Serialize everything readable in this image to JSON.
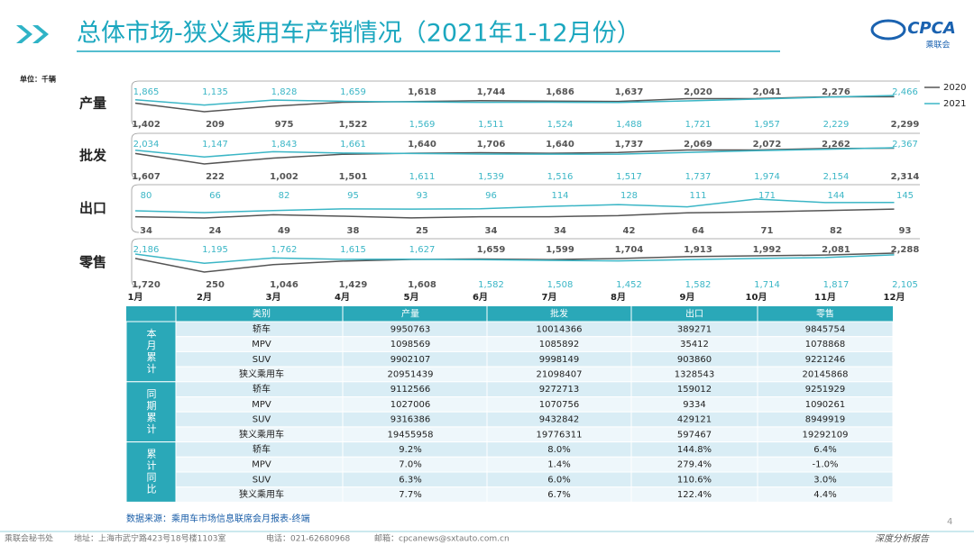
{
  "header": {
    "title": "总体市场-狭义乘用车产销情况（2021年1-12月份）",
    "logo": "CPCA",
    "logo_sub": "乘联会"
  },
  "chart_data": {
    "type": "line",
    "unit": "单位：千辆",
    "categories": [
      "1月",
      "2月",
      "3月",
      "4月",
      "5月",
      "6月",
      "7月",
      "8月",
      "9月",
      "10月",
      "11月",
      "12月"
    ],
    "series": [
      {
        "name": "2020",
        "color": "#555555"
      },
      {
        "name": "2021",
        "color": "#3bb6c6"
      }
    ],
    "panels": [
      {
        "label": "产量",
        "series": [
          {
            "values": [
              1402,
              209,
              975,
              1522,
              1618,
              1744,
              1686,
              1637,
              2020,
              2041,
              2276,
              2299
            ],
            "value_labels": [
              "1,402",
              "209",
              "975",
              "1,522",
              "1,618",
              "1,744",
              "1,686",
              "1,637",
              "2,020",
              "2,041",
              "2,276",
              "2,299"
            ]
          },
          {
            "values": [
              1865,
              1135,
              1828,
              1659,
              1569,
              1511,
              1524,
              1488,
              1721,
              1957,
              2229,
              2466
            ],
            "value_labels": [
              "1,865",
              "1,135",
              "1,828",
              "1,659",
              "1,569",
              "1,511",
              "1,524",
              "1,488",
              "1,721",
              "1,957",
              "2,229",
              "2,466"
            ]
          }
        ]
      },
      {
        "label": "批发",
        "series": [
          {
            "values": [
              1607,
              222,
              1002,
              1501,
              1640,
              1706,
              1640,
              1737,
              2069,
              2072,
              2262,
              2314
            ],
            "value_labels": [
              "1,607",
              "222",
              "1,002",
              "1,501",
              "1,640",
              "1,706",
              "1,640",
              "1,737",
              "2,069",
              "2,072",
              "2,262",
              "2,314"
            ]
          },
          {
            "values": [
              2034,
              1147,
              1843,
              1661,
              1611,
              1539,
              1516,
              1517,
              1737,
              1974,
              2154,
              2367
            ],
            "value_labels": [
              "2,034",
              "1,147",
              "1,843",
              "1,661",
              "1,611",
              "1,539",
              "1,516",
              "1,517",
              "1,737",
              "1,974",
              "2,154",
              "2,367"
            ]
          }
        ]
      },
      {
        "label": "出口",
        "series": [
          {
            "values": [
              34,
              24,
              49,
              38,
              25,
              34,
              34,
              42,
              64,
              71,
              82,
              93
            ],
            "value_labels": [
              "34",
              "24",
              "49",
              "38",
              "25",
              "34",
              "34",
              "42",
              "64",
              "71",
              "82",
              "93"
            ]
          },
          {
            "values": [
              80,
              66,
              82,
              95,
              93,
              96,
              114,
              128,
              111,
              171,
              144,
              145
            ],
            "value_labels": [
              "80",
              "66",
              "82",
              "95",
              "93",
              "96",
              "114",
              "128",
              "111",
              "171",
              "144",
              "145"
            ]
          }
        ]
      },
      {
        "label": "零售",
        "series": [
          {
            "values": [
              1720,
              250,
              1046,
              1429,
              1608,
              1659,
              1599,
              1704,
              1913,
              1992,
              2081,
              2288
            ],
            "value_labels": [
              "1,720",
              "250",
              "1,046",
              "1,429",
              "1,608",
              "1,659",
              "1,599",
              "1,704",
              "1,913",
              "1,992",
              "2,081",
              "2,288"
            ]
          },
          {
            "values": [
              2186,
              1195,
              1762,
              1615,
              1627,
              1582,
              1508,
              1452,
              1582,
              1714,
              1817,
              2105
            ],
            "value_labels": [
              "2,186",
              "1,195",
              "1,762",
              "1,615",
              "1,627",
              "1,582",
              "1,508",
              "1,452",
              "1,582",
              "1,714",
              "1,817",
              "2,105"
            ]
          }
        ]
      }
    ]
  },
  "table": {
    "columns": [
      "类别",
      "产量",
      "批发",
      "出口",
      "零售"
    ],
    "groups": [
      {
        "label": "本月累计",
        "rows": [
          [
            "轿车",
            "9950763",
            "10014366",
            "389271",
            "9845754"
          ],
          [
            "MPV",
            "1098569",
            "1085892",
            "35412",
            "1078868"
          ],
          [
            "SUV",
            "9902107",
            "9998149",
            "903860",
            "9221246"
          ],
          [
            "狭义乘用车",
            "20951439",
            "21098407",
            "1328543",
            "20145868"
          ]
        ]
      },
      {
        "label": "同期累计",
        "rows": [
          [
            "轿车",
            "9112566",
            "9272713",
            "159012",
            "9251929"
          ],
          [
            "MPV",
            "1027006",
            "1070756",
            "9334",
            "1090261"
          ],
          [
            "SUV",
            "9316386",
            "9432842",
            "429121",
            "8949919"
          ],
          [
            "狭义乘用车",
            "19455958",
            "19776311",
            "597467",
            "19292109"
          ]
        ]
      },
      {
        "label": "累计同比",
        "rows": [
          [
            "轿车",
            "9.2%",
            "8.0%",
            "144.8%",
            "6.4%"
          ],
          [
            "MPV",
            "7.0%",
            "1.4%",
            "279.4%",
            "-1.0%"
          ],
          [
            "SUV",
            "6.3%",
            "6.0%",
            "110.6%",
            "3.0%"
          ],
          [
            "狭义乘用车",
            "7.7%",
            "6.7%",
            "122.4%",
            "4.4%"
          ]
        ]
      }
    ]
  },
  "source": "数据来源：乘用车市场信息联席会月报表-终端",
  "footer": {
    "items": [
      "乘联会秘书处",
      "地址：上海市武宁路423号18号楼1103室",
      "电话：021-62680968",
      "邮箱：cpcanews@sxtauto.com.cn"
    ],
    "page": "4",
    "tag": "深度分析报告"
  }
}
